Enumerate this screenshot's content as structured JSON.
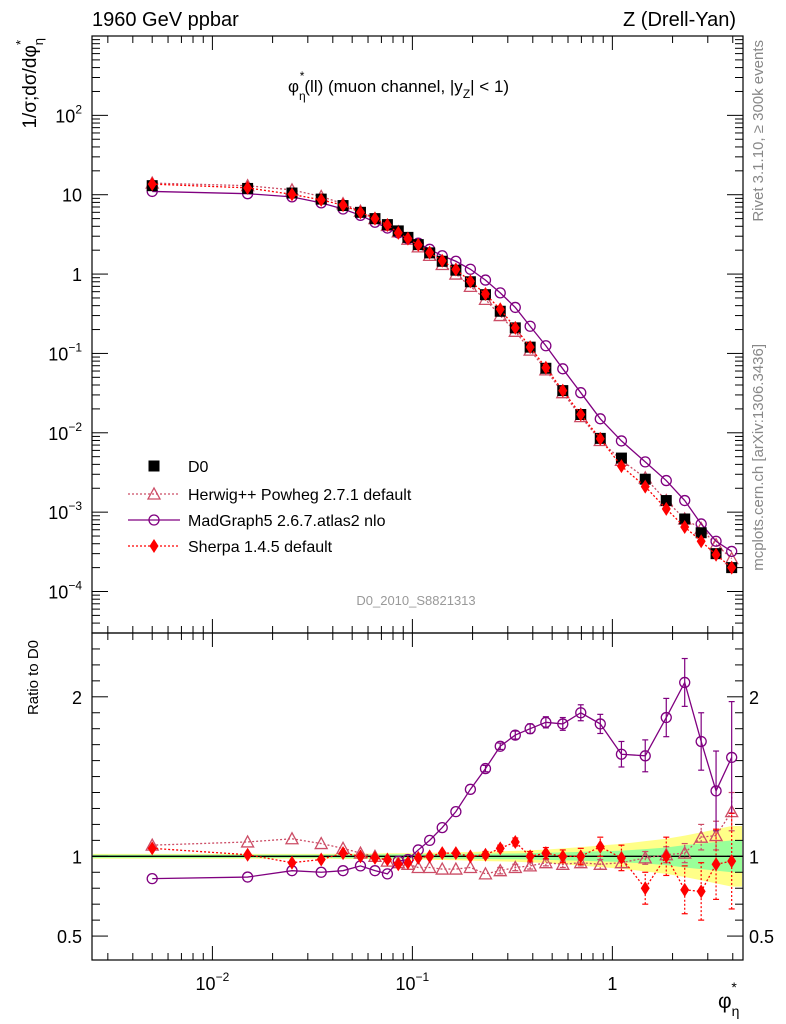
{
  "header": {
    "left": "1960 GeV ppbar",
    "right": "Z (Drell-Yan)"
  },
  "side_labels": {
    "rivet": "Rivet 3.1.10, ≥ 300k events",
    "mcplots": "mcplots.cern.ch [arXiv:1306.3436]"
  },
  "analysis_id": "D0_2010_S8821313",
  "colors": {
    "data": "#000000",
    "herwig": "#cc4d66",
    "madgraph": "#800080",
    "sherpa": "#ff0000",
    "band_inner": "#99ff99",
    "band_outer": "#ffff88"
  },
  "chart_data": [
    {
      "type": "scatter",
      "title": "φ*η(ll) (muon channel, |yZ| < 1)",
      "title_parts": {
        "main": "φ",
        "sup": "*",
        "sub": "η",
        "text": "(ll) (muon channel, |y",
        "sub2": "Z",
        "end": "| < 1)"
      },
      "ylabel": "1/σ;dσ/dφ*η",
      "xscale": "log",
      "yscale": "log",
      "xlim": [
        0.0025,
        4.5
      ],
      "ylim": [
        3e-05,
        1000
      ],
      "grid": false,
      "legend_position": "bottom-left",
      "x": [
        0.005,
        0.015,
        0.025,
        0.035,
        0.045,
        0.055,
        0.065,
        0.075,
        0.085,
        0.095,
        0.107,
        0.122,
        0.141,
        0.165,
        0.195,
        0.232,
        0.275,
        0.327,
        0.388,
        0.465,
        0.565,
        0.695,
        0.87,
        1.11,
        1.46,
        1.86,
        2.3,
        2.78,
        3.3,
        3.95
      ],
      "series": [
        {
          "name": "D0",
          "values": [
            13.0,
            12.0,
            10.5,
            8.8,
            7.3,
            6.0,
            5.0,
            4.2,
            3.5,
            2.9,
            2.35,
            1.85,
            1.45,
            1.12,
            0.8,
            0.55,
            0.34,
            0.21,
            0.12,
            0.065,
            0.034,
            0.017,
            0.0085,
            0.0048,
            0.0026,
            0.0014,
            0.00082,
            0.00055,
            0.0003,
            0.0002
          ]
        },
        {
          "name": "Herwig++ Powheg 2.7.1 default",
          "values": [
            14.0,
            13.0,
            11.5,
            9.5,
            7.7,
            6.2,
            5.0,
            4.1,
            3.4,
            2.75,
            2.2,
            1.72,
            1.32,
            1.0,
            0.7,
            0.48,
            0.3,
            0.19,
            0.11,
            0.062,
            0.032,
            0.016,
            0.008,
            0.0045,
            0.0027,
            0.0014,
            0.00082,
            0.00062,
            0.00039,
            0.00026
          ]
        },
        {
          "name": "MadGraph5 2.6.7.atlas2 nlo",
          "values": [
            11.0,
            10.3,
            9.4,
            7.9,
            6.6,
            5.5,
            4.5,
            3.8,
            3.3,
            2.8,
            2.45,
            2.05,
            1.7,
            1.45,
            1.15,
            0.84,
            0.58,
            0.38,
            0.22,
            0.125,
            0.064,
            0.032,
            0.015,
            0.0079,
            0.0043,
            0.0025,
            0.0014,
            0.00071,
            0.00043,
            0.00032
          ]
        },
        {
          "name": "Sherpa 1.4.5 default",
          "values": [
            13.6,
            12.2,
            10.1,
            8.6,
            7.4,
            6.0,
            5.0,
            4.15,
            3.3,
            2.8,
            2.33,
            1.86,
            1.47,
            1.14,
            0.81,
            0.56,
            0.36,
            0.21,
            0.12,
            0.066,
            0.034,
            0.017,
            0.0084,
            0.0038,
            0.0021,
            0.0011,
            0.00065,
            0.00043,
            0.00029,
            0.0002
          ]
        }
      ]
    },
    {
      "type": "scatter",
      "ylabel": "Ratio to D0",
      "xlabel": "φ*η",
      "xlabel_parts": {
        "main": "φ",
        "sup": "*",
        "sub": "η"
      },
      "xscale": "log",
      "xlim": [
        0.0025,
        4.5
      ],
      "ylim": [
        0.35,
        2.4
      ],
      "yticks": [
        "0.5",
        "1",
        "2"
      ],
      "x": [
        0.005,
        0.015,
        0.025,
        0.035,
        0.045,
        0.055,
        0.065,
        0.075,
        0.085,
        0.095,
        0.107,
        0.122,
        0.141,
        0.165,
        0.195,
        0.232,
        0.275,
        0.327,
        0.388,
        0.465,
        0.565,
        0.695,
        0.87,
        1.11,
        1.46,
        1.86,
        2.3,
        2.78,
        3.3,
        3.95
      ],
      "band_inner": [
        0.01,
        0.01,
        0.01,
        0.01,
        0.012,
        0.012,
        0.012,
        0.013,
        0.013,
        0.013,
        0.013,
        0.014,
        0.014,
        0.015,
        0.016,
        0.017,
        0.018,
        0.018,
        0.02,
        0.022,
        0.025,
        0.028,
        0.032,
        0.036,
        0.045,
        0.055,
        0.07,
        0.08,
        0.09,
        0.1
      ],
      "band_outer": [
        0.015,
        0.015,
        0.015,
        0.015,
        0.017,
        0.017,
        0.018,
        0.019,
        0.019,
        0.02,
        0.02,
        0.022,
        0.023,
        0.025,
        0.027,
        0.03,
        0.032,
        0.034,
        0.038,
        0.042,
        0.05,
        0.058,
        0.068,
        0.078,
        0.095,
        0.11,
        0.13,
        0.15,
        0.17,
        0.19
      ],
      "series": [
        {
          "name": "Herwig++ Powheg 2.7.1 default",
          "values": [
            1.07,
            1.09,
            1.11,
            1.08,
            1.05,
            1.02,
            1.0,
            0.97,
            0.96,
            0.95,
            0.93,
            0.93,
            0.92,
            0.92,
            0.93,
            0.89,
            0.91,
            0.93,
            0.94,
            0.96,
            0.95,
            0.96,
            0.95,
            0.96,
            0.99,
            1.01,
            1.02,
            1.12,
            1.13,
            1.28
          ],
          "errors": [
            0.01,
            0.01,
            0.01,
            0.01,
            0.01,
            0.01,
            0.01,
            0.01,
            0.01,
            0.01,
            0.01,
            0.01,
            0.01,
            0.01,
            0.01,
            0.01,
            0.02,
            0.02,
            0.02,
            0.02,
            0.02,
            0.02,
            0.03,
            0.03,
            0.04,
            0.05,
            0.06,
            0.08,
            0.09,
            0.12
          ]
        },
        {
          "name": "MadGraph5 2.6.7.atlas2 nlo",
          "values": [
            0.86,
            0.87,
            0.91,
            0.9,
            0.91,
            0.94,
            0.91,
            0.89,
            0.97,
            0.98,
            1.04,
            1.1,
            1.18,
            1.28,
            1.42,
            1.55,
            1.69,
            1.76,
            1.8,
            1.84,
            1.83,
            1.9,
            1.83,
            1.64,
            1.63,
            1.87,
            2.09,
            1.72,
            1.41,
            1.62
          ],
          "errors": [
            0.01,
            0.01,
            0.01,
            0.01,
            0.01,
            0.01,
            0.01,
            0.01,
            0.01,
            0.01,
            0.01,
            0.01,
            0.01,
            0.01,
            0.015,
            0.02,
            0.02,
            0.025,
            0.03,
            0.035,
            0.04,
            0.05,
            0.06,
            0.08,
            0.1,
            0.12,
            0.15,
            0.18,
            0.25,
            0.35
          ]
        },
        {
          "name": "Sherpa 1.4.5 default",
          "values": [
            1.05,
            1.01,
            0.96,
            0.98,
            1.02,
            1.0,
            0.99,
            0.98,
            0.95,
            0.96,
            0.99,
            1.0,
            1.02,
            1.02,
            1.0,
            1.01,
            1.05,
            1.09,
            1.0,
            1.02,
            1.0,
            1.0,
            1.06,
            0.99,
            0.8,
            1.0,
            0.79,
            0.78,
            0.95,
            0.97
          ],
          "errors": [
            0.01,
            0.01,
            0.01,
            0.01,
            0.01,
            0.01,
            0.01,
            0.01,
            0.01,
            0.01,
            0.01,
            0.01,
            0.01,
            0.01,
            0.015,
            0.02,
            0.02,
            0.025,
            0.03,
            0.035,
            0.04,
            0.05,
            0.06,
            0.08,
            0.1,
            0.12,
            0.15,
            0.18,
            0.22,
            0.3
          ]
        }
      ]
    }
  ]
}
